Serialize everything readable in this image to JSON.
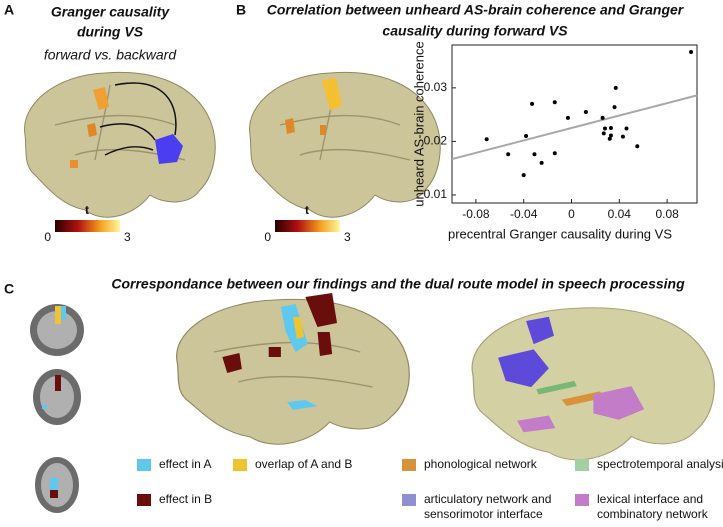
{
  "panel_a": {
    "letter": "A",
    "title": [
      "Granger causality",
      "during VS"
    ],
    "subtitle": "forward vs. backward",
    "colorbar": {
      "label": "t",
      "min": 0,
      "max": 3
    }
  },
  "panel_b": {
    "letter": "B",
    "colorbar": {
      "label": "t",
      "min": 0,
      "max": 3
    }
  },
  "chart_data": {
    "type": "scatter",
    "title": [
      "Correlation between unheard AS-brain coherence and Granger",
      "causality during forward VS"
    ],
    "x_label": "precentral Granger causality during VS",
    "y_label": "unheard AS-brain coherence",
    "x": [
      -0.071,
      -0.053,
      -0.033,
      -0.038,
      -0.031,
      -0.04,
      -0.025,
      -0.014,
      -0.014,
      -0.003,
      0.012,
      0.026,
      0.028,
      0.027,
      0.033,
      0.033,
      0.032,
      0.037,
      0.036,
      0.046,
      0.043,
      0.055,
      0.1
    ],
    "y": [
      0.0204,
      0.0176,
      0.027,
      0.021,
      0.0176,
      0.0137,
      0.016,
      0.0273,
      0.0178,
      0.0244,
      0.0255,
      0.0244,
      0.0224,
      0.0215,
      0.0225,
      0.0211,
      0.0205,
      0.03,
      0.0264,
      0.0224,
      0.0209,
      0.0191,
      0.0367
    ],
    "color": "#000000",
    "xlim": [
      -0.1,
      0.105
    ],
    "ylim": [
      0.0085,
      0.038
    ],
    "xticks": [
      -0.08,
      -0.04,
      0,
      0.04,
      0.08
    ],
    "yticks": [
      0.01,
      0.02,
      0.03
    ],
    "fit_line": {
      "x": [
        -0.1,
        0.105
      ],
      "y": [
        0.0167,
        0.0286
      ],
      "color": "#a8a8a8"
    }
  },
  "panel_c": {
    "letter": "C",
    "title": "Correspondance between our findings and the dual route model in speech processing",
    "legend": [
      {
        "label": [
          "effect in A"
        ],
        "color": "#5ec8ef"
      },
      {
        "label": [
          "overlap of A and B"
        ],
        "color": "#f0c330"
      },
      {
        "label": [
          "phonological network"
        ],
        "color": "#d8923c"
      },
      {
        "label": [
          "spectrotemporal analysis"
        ],
        "color": "#a3d0a3"
      },
      {
        "label": [
          "effect in B"
        ],
        "color": "#6a0d0d"
      },
      {
        "label": [
          "articulatory network and",
          "sensorimotor interface"
        ],
        "color": "#8e90cf"
      },
      {
        "label": [
          "lexical interface and",
          "combinatory network"
        ],
        "color": "#c27cc8"
      }
    ]
  }
}
